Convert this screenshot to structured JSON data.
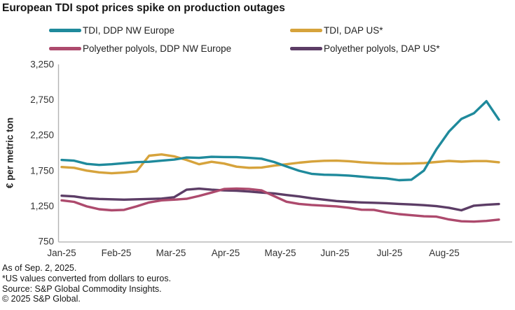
{
  "title": "European TDI spot prices spike on production outages",
  "y_axis": {
    "title": "€ per metric ton",
    "ticks": [
      "750",
      "1,250",
      "1,750",
      "2,250",
      "2,750",
      "3,250"
    ],
    "min": 750,
    "max": 3250,
    "step": 500
  },
  "x_axis": {
    "labels": [
      "Jan-25",
      "Feb-25",
      "Mar-25",
      "Apr-25",
      "May-25",
      "Jun-25",
      "Jul-25",
      "Aug-25"
    ]
  },
  "footnotes": [
    "As of Sep. 2, 2025.",
    "*US values converted from dollars to euros.",
    "Source: S&P Global Commodity Insights.",
    "© 2025 S&P Global."
  ],
  "colors": {
    "axis_line": "#b3b3b3",
    "tick_text": "#333333",
    "title_text": "#151515"
  },
  "chart_data": {
    "type": "line",
    "title": "European TDI spot prices spike on production outages",
    "xlabel": "",
    "ylabel": "€ per metric ton",
    "ylim": [
      750,
      3250
    ],
    "grid": false,
    "legend_position": "top",
    "x_frequency": "weekly",
    "x_range_labels": [
      "Jan-25",
      "Sep-25 (as of Sep. 2, 2025)"
    ],
    "categories": [
      "Jan-25",
      "Feb-25",
      "Mar-25",
      "Apr-25",
      "May-25",
      "Jun-25",
      "Jul-25",
      "Aug-25"
    ],
    "series": [
      {
        "name": "TDI, DDP NW Europe",
        "color": "#1f8a9c",
        "values": [
          1900,
          1890,
          1845,
          1830,
          1840,
          1855,
          1870,
          1875,
          1890,
          1905,
          1935,
          1930,
          1945,
          1942,
          1940,
          1930,
          1918,
          1872,
          1808,
          1748,
          1705,
          1692,
          1688,
          1680,
          1665,
          1650,
          1640,
          1615,
          1622,
          1750,
          2050,
          2300,
          2480,
          2560,
          2730,
          2470
        ]
      },
      {
        "name": "TDI, DAP US*",
        "color": "#d6a33c",
        "values": [
          1800,
          1790,
          1750,
          1725,
          1712,
          1722,
          1740,
          1960,
          1978,
          1952,
          1900,
          1840,
          1875,
          1850,
          1805,
          1790,
          1793,
          1820,
          1840,
          1862,
          1878,
          1888,
          1890,
          1882,
          1868,
          1858,
          1850,
          1848,
          1850,
          1856,
          1872,
          1886,
          1876,
          1884,
          1884,
          1868
        ]
      },
      {
        "name": "Polyether polyols, DDP NW Europe",
        "color": "#ad4a6d",
        "values": [
          1330,
          1308,
          1245,
          1205,
          1190,
          1196,
          1245,
          1300,
          1330,
          1340,
          1352,
          1392,
          1440,
          1490,
          1497,
          1490,
          1470,
          1390,
          1310,
          1280,
          1265,
          1255,
          1245,
          1225,
          1198,
          1196,
          1160,
          1135,
          1120,
          1105,
          1100,
          1060,
          1035,
          1030,
          1040,
          1058
        ]
      },
      {
        "name": "Polyether polyols, DAP US*",
        "color": "#5c3d66",
        "values": [
          1395,
          1385,
          1360,
          1350,
          1345,
          1340,
          1345,
          1350,
          1355,
          1375,
          1480,
          1495,
          1480,
          1470,
          1465,
          1455,
          1440,
          1428,
          1405,
          1385,
          1360,
          1340,
          1320,
          1308,
          1300,
          1295,
          1290,
          1280,
          1272,
          1262,
          1248,
          1225,
          1190,
          1255,
          1268,
          1278
        ]
      }
    ]
  }
}
